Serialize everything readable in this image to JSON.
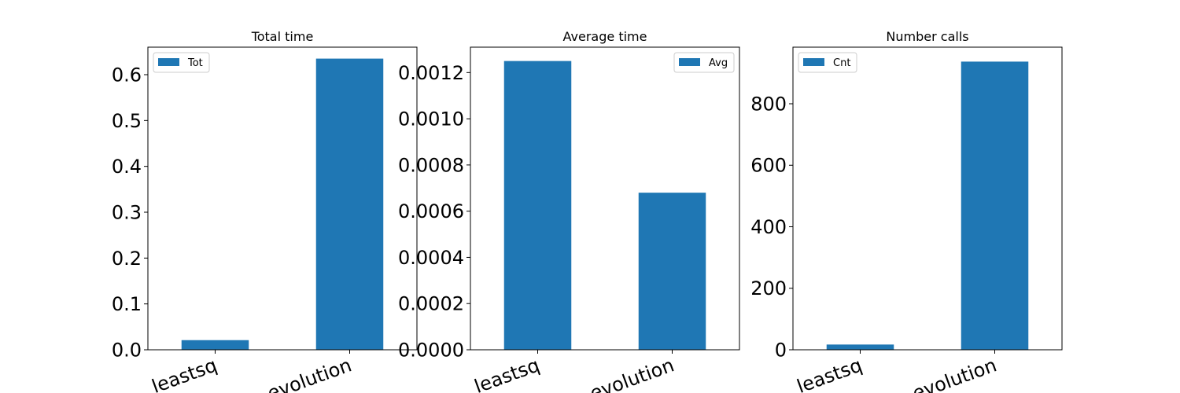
{
  "figure": {
    "bar_color": "#1f77b4",
    "axis_color": "#000000"
  },
  "chart_data": [
    {
      "type": "bar",
      "title": "Total time",
      "categories": [
        "leastsq",
        "evolution"
      ],
      "series": [
        {
          "name": "Tot",
          "values": [
            0.021,
            0.635
          ]
        }
      ],
      "ylim": [
        0,
        0.66
      ],
      "yticks": [
        0.0,
        0.1,
        0.2,
        0.3,
        0.4,
        0.5,
        0.6
      ],
      "ytick_labels": [
        "0.0",
        "0.1",
        "0.2",
        "0.3",
        "0.4",
        "0.5",
        "0.6"
      ],
      "xlabel": "",
      "ylabel": "",
      "grid": false,
      "legend": "upper left"
    },
    {
      "type": "bar",
      "title": "Average time",
      "categories": [
        "leastsq",
        "evolution"
      ],
      "series": [
        {
          "name": "Avg",
          "values": [
            0.00125,
            0.00068
          ]
        }
      ],
      "ylim": [
        0,
        0.00131
      ],
      "yticks": [
        0.0,
        0.0002,
        0.0004,
        0.0006,
        0.0008,
        0.001,
        0.0012
      ],
      "ytick_labels": [
        "0.0000",
        "0.0002",
        "0.0004",
        "0.0006",
        "0.0008",
        "0.0010",
        "0.0012"
      ],
      "xlabel": "",
      "ylabel": "",
      "grid": false,
      "legend": "upper right"
    },
    {
      "type": "bar",
      "title": "Number calls",
      "categories": [
        "leastsq",
        "evolution"
      ],
      "series": [
        {
          "name": "Cnt",
          "values": [
            17,
            937
          ]
        }
      ],
      "ylim": [
        0,
        984
      ],
      "yticks": [
        0,
        200,
        400,
        600,
        800
      ],
      "ytick_labels": [
        "0",
        "200",
        "400",
        "600",
        "800"
      ],
      "xlabel": "",
      "ylabel": "",
      "grid": false,
      "legend": "upper left"
    }
  ]
}
